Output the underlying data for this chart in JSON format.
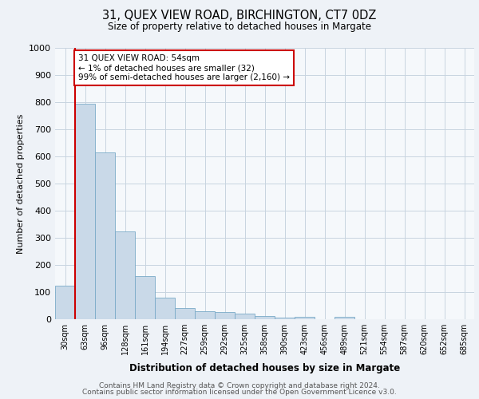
{
  "title": "31, QUEX VIEW ROAD, BIRCHINGTON, CT7 0DZ",
  "subtitle": "Size of property relative to detached houses in Margate",
  "xlabel": "Distribution of detached houses by size in Margate",
  "ylabel": "Number of detached properties",
  "bar_labels": [
    "30sqm",
    "63sqm",
    "96sqm",
    "128sqm",
    "161sqm",
    "194sqm",
    "227sqm",
    "259sqm",
    "292sqm",
    "325sqm",
    "358sqm",
    "390sqm",
    "423sqm",
    "456sqm",
    "489sqm",
    "521sqm",
    "554sqm",
    "587sqm",
    "620sqm",
    "652sqm",
    "685sqm"
  ],
  "bar_values": [
    125,
    795,
    615,
    325,
    160,
    78,
    40,
    30,
    27,
    20,
    13,
    5,
    10,
    0,
    10,
    0,
    0,
    0,
    0,
    0,
    0
  ],
  "bar_color": "#c9d9e8",
  "bar_edge_color": "#7aaac8",
  "vline_x": 1,
  "vline_color": "#cc0000",
  "annotation_text": "31 QUEX VIEW ROAD: 54sqm\n← 1% of detached houses are smaller (32)\n99% of semi-detached houses are larger (2,160) →",
  "annotation_box_color": "#ffffff",
  "annotation_box_edge_color": "#cc0000",
  "ylim": [
    0,
    1000
  ],
  "yticks": [
    0,
    100,
    200,
    300,
    400,
    500,
    600,
    700,
    800,
    900,
    1000
  ],
  "footer_line1": "Contains HM Land Registry data © Crown copyright and database right 2024.",
  "footer_line2": "Contains public sector information licensed under the Open Government Licence v3.0.",
  "bg_color": "#eef2f7",
  "plot_bg_color": "#f5f8fb",
  "grid_color": "#c8d4e0"
}
